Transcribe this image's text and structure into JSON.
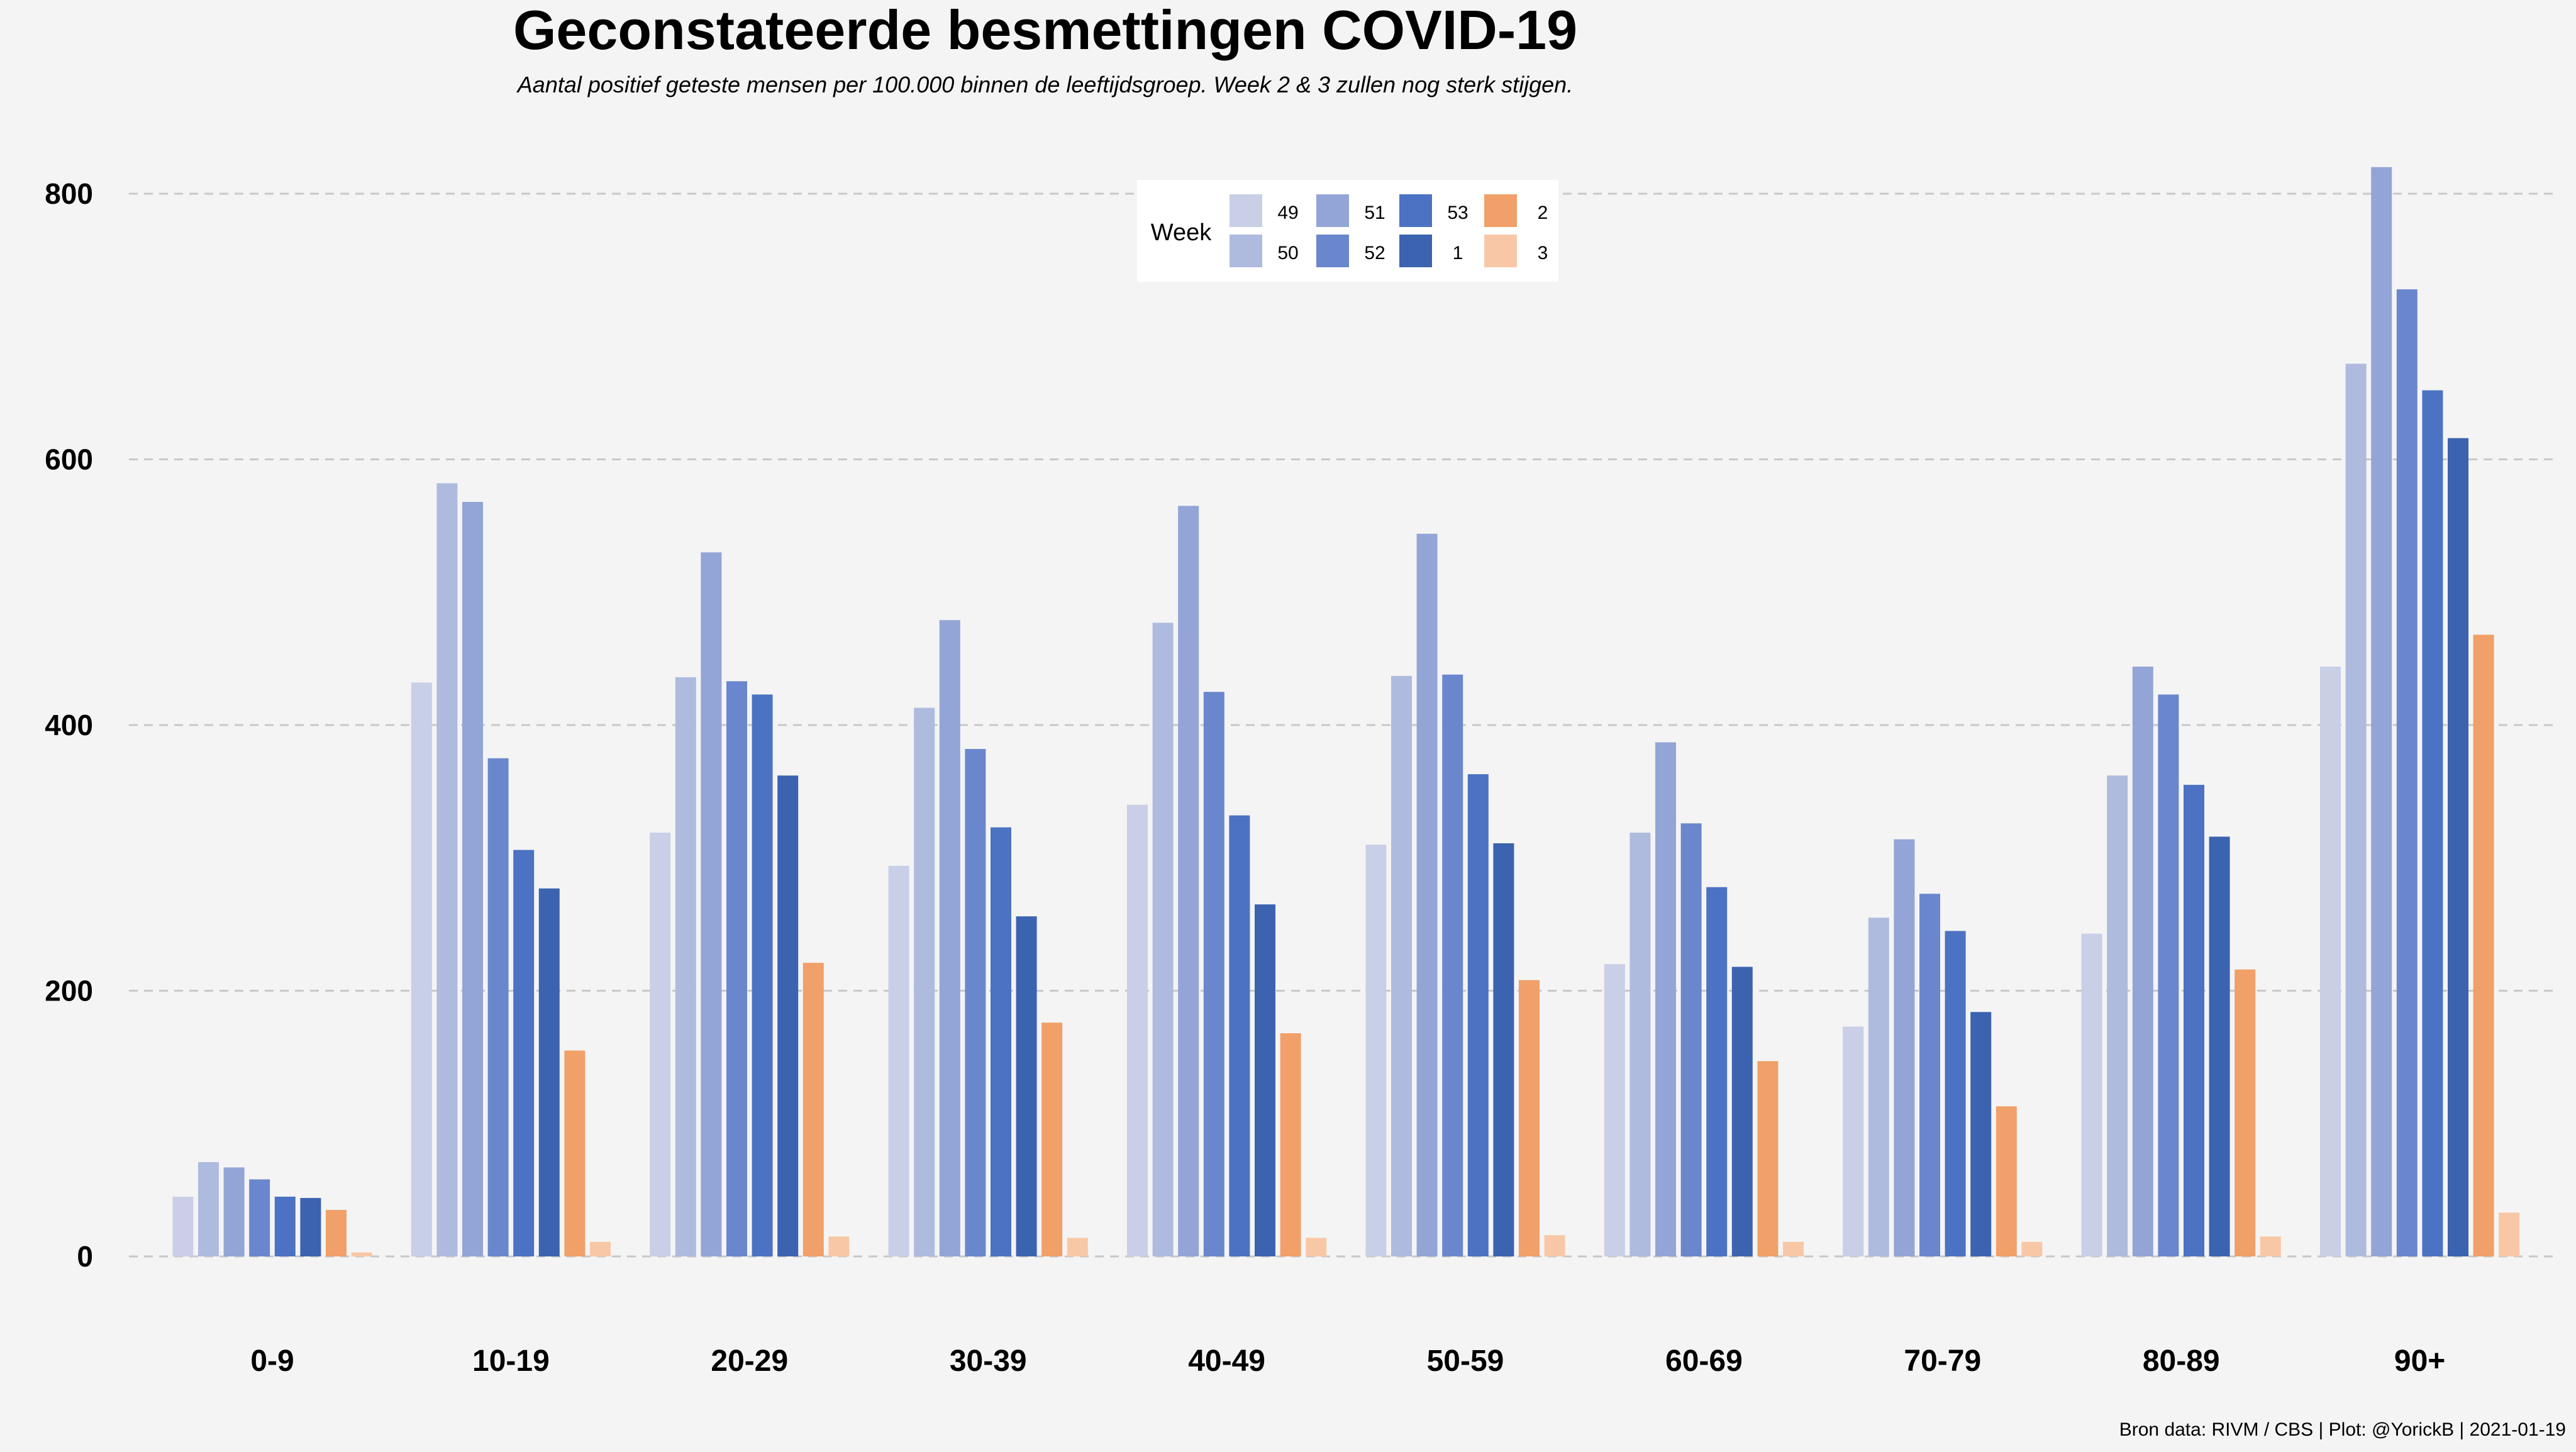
{
  "chart_data": {
    "type": "bar",
    "title": "Geconstateerde besmettingen COVID-19",
    "subtitle": "Aantal positief geteste mensen per 100.000 binnen de leeftijdsgroep. Week 2 & 3 zullen nog sterk stijgen.",
    "caption": "Bron data: RIVM / CBS  | Plot: @YorickB |  2021-01-19",
    "xlabel": "",
    "ylabel": "",
    "ylim": [
      0,
      830
    ],
    "yticks": [
      0,
      200,
      400,
      600,
      800
    ],
    "grid": "horizontal dashed",
    "legend_title": "Week",
    "legend_position": "top-center",
    "categories": [
      "0-9",
      "10-19",
      "20-29",
      "30-39",
      "40-49",
      "50-59",
      "60-69",
      "70-79",
      "80-89",
      "90+"
    ],
    "series": [
      {
        "name": "49",
        "color": "#c8cfe6",
        "values": [
          45,
          432,
          319,
          294,
          340,
          310,
          220,
          173,
          243,
          444
        ]
      },
      {
        "name": "50",
        "color": "#aebbdf",
        "values": [
          71,
          582,
          436,
          413,
          477,
          437,
          319,
          255,
          362,
          672
        ]
      },
      {
        "name": "51",
        "color": "#93a5d6",
        "values": [
          67,
          568,
          530,
          479,
          565,
          544,
          387,
          314,
          444,
          820
        ]
      },
      {
        "name": "52",
        "color": "#6a87cd",
        "values": [
          58,
          375,
          433,
          382,
          425,
          438,
          326,
          273,
          423,
          728
        ]
      },
      {
        "name": "53",
        "color": "#4b72c3",
        "values": [
          45,
          306,
          423,
          323,
          332,
          363,
          278,
          245,
          355,
          652
        ]
      },
      {
        "name": "1",
        "color": "#3b63b0",
        "values": [
          44,
          277,
          362,
          256,
          265,
          311,
          218,
          184,
          316,
          616
        ]
      },
      {
        "name": "2",
        "color": "#f0a068",
        "values": [
          35,
          155,
          221,
          176,
          168,
          208,
          147,
          113,
          216,
          468
        ]
      },
      {
        "name": "3",
        "color": "#f8c8a6",
        "values": [
          3,
          11,
          15,
          14,
          14,
          16,
          11,
          11,
          15,
          33
        ]
      }
    ]
  }
}
